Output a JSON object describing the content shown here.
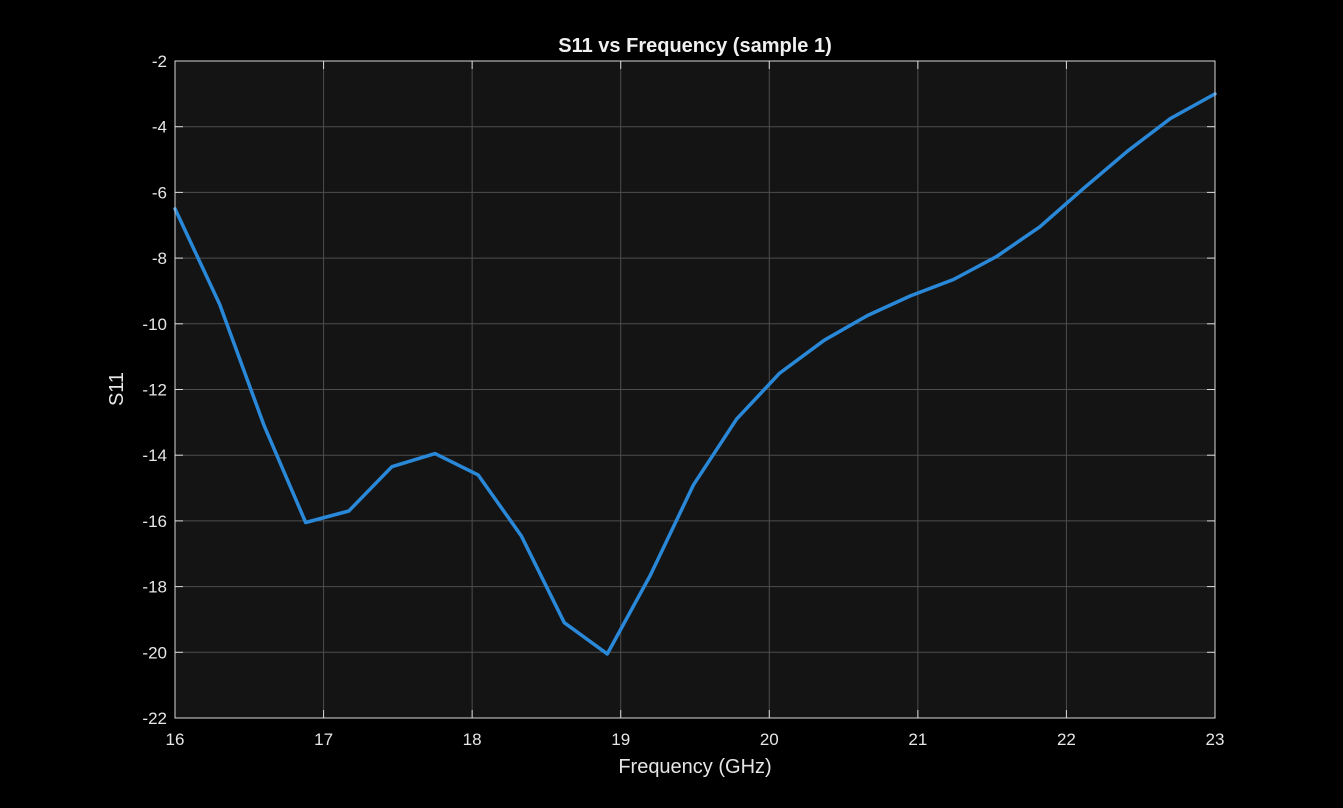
{
  "chart_data": {
    "type": "line",
    "title": "S11 vs Frequency (sample 1)",
    "xlabel": "Frequency (GHz)",
    "ylabel": "S11",
    "xlim": [
      16,
      23
    ],
    "ylim": [
      -22,
      -2
    ],
    "xticks": [
      16,
      17,
      18,
      19,
      20,
      21,
      22,
      23
    ],
    "yticks": [
      -22,
      -20,
      -18,
      -16,
      -14,
      -12,
      -10,
      -8,
      -6,
      -4,
      -2
    ],
    "grid": true,
    "series": [
      {
        "color": "#2a88d8",
        "x": [
          16.0,
          16.3,
          16.6,
          16.88,
          17.17,
          17.46,
          17.75,
          18.04,
          18.33,
          18.62,
          18.91,
          19.2,
          19.49,
          19.78,
          20.07,
          20.37,
          20.66,
          20.95,
          21.24,
          21.53,
          21.82,
          22.11,
          22.41,
          22.7,
          23.0
        ],
        "y": [
          -6.5,
          -9.4,
          -13.1,
          -16.05,
          -15.7,
          -14.35,
          -13.95,
          -14.6,
          -16.45,
          -19.1,
          -20.05,
          -17.65,
          -14.9,
          -12.9,
          -11.5,
          -10.5,
          -9.75,
          -9.15,
          -8.65,
          -7.95,
          -7.05,
          -5.9,
          -4.75,
          -3.75,
          -3.0
        ]
      }
    ],
    "colors": {
      "background": "#000000",
      "plot_area": "#141414",
      "grid": "#4d4d4d",
      "axis": "#d9d9d9",
      "text": "#e6e6e6"
    }
  }
}
